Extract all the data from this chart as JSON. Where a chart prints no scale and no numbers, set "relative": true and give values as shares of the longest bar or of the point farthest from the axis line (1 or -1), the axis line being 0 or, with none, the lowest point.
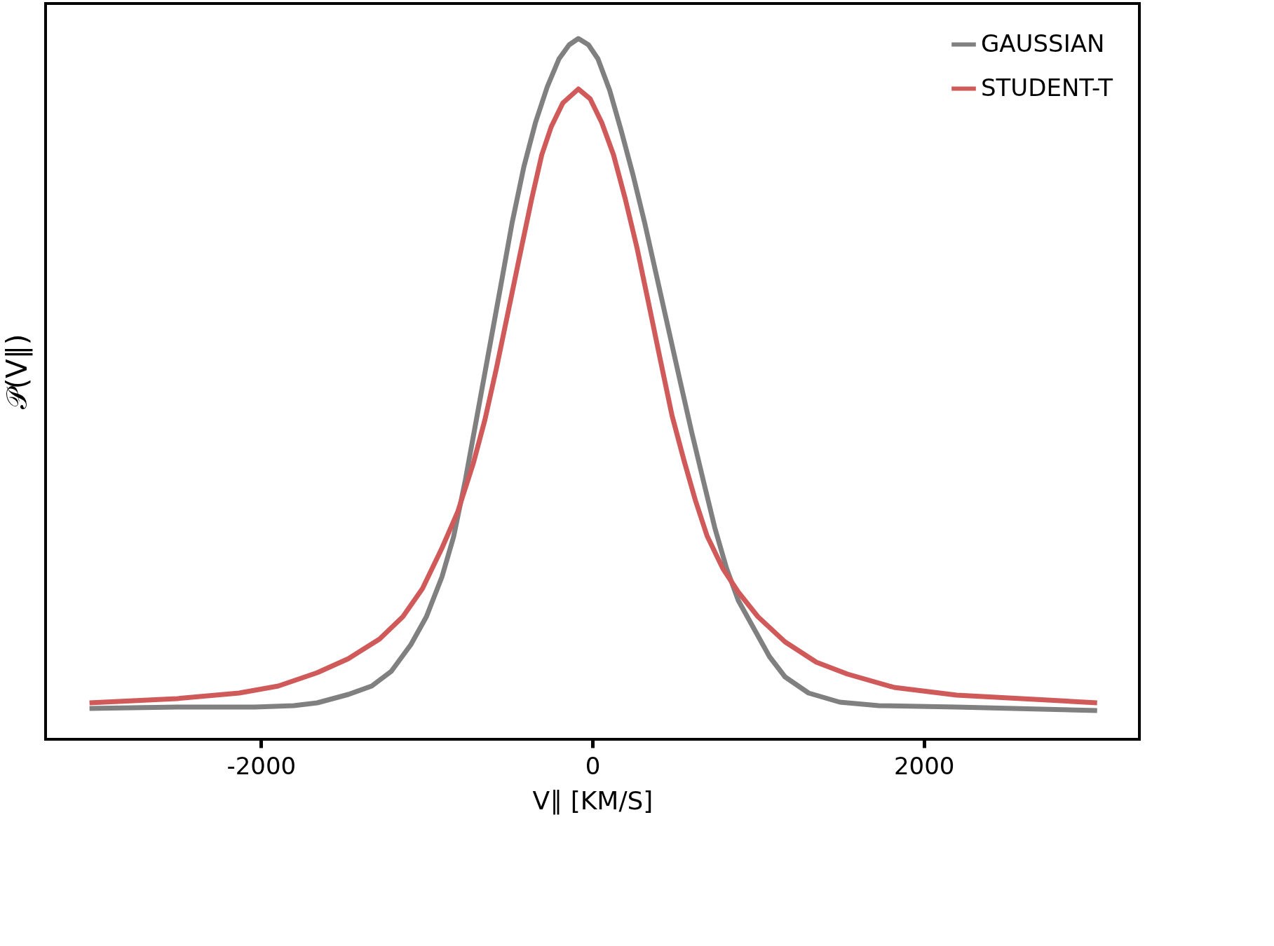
{
  "chart_data": {
    "type": "line",
    "relative": true,
    "xlabel": "V∥ [KM/S]",
    "ylabel": "𝒫(V∥)",
    "xlim": [
      -3300,
      3300
    ],
    "xticks": [
      -2000,
      0,
      2000
    ],
    "tick_labels": "x",
    "grid": false,
    "legend": "top right",
    "marker": "none",
    "line_style": "solid",
    "series": [
      {
        "name": "GAUSSIAN",
        "color": "#808080",
        "x": [
          -3035,
          -2508,
          -2038,
          -1802,
          -1661,
          -1473,
          -1332,
          -1214,
          -1096,
          -1002,
          -908,
          -838,
          -767,
          -696,
          -626,
          -555,
          -485,
          -414,
          -344,
          -273,
          -202,
          -141,
          -85,
          -24,
          33,
          104,
          174,
          245,
          315,
          386,
          456,
          527,
          598,
          668,
          739,
          809,
          880,
          974,
          1068,
          1162,
          1304,
          1492,
          1727,
          2198,
          3045
        ],
        "values": [
          0.044,
          0.046,
          0.046,
          0.048,
          0.052,
          0.064,
          0.076,
          0.097,
          0.135,
          0.175,
          0.232,
          0.289,
          0.37,
          0.462,
          0.553,
          0.645,
          0.737,
          0.817,
          0.88,
          0.931,
          0.971,
          0.991,
          1,
          0.991,
          0.971,
          0.926,
          0.868,
          0.805,
          0.737,
          0.662,
          0.588,
          0.513,
          0.439,
          0.37,
          0.301,
          0.244,
          0.198,
          0.158,
          0.118,
          0.089,
          0.066,
          0.053,
          0.048,
          0.046,
          0.041
        ]
      },
      {
        "name": "STUDENT-T",
        "color": "#d05a5a",
        "x": [
          -3035,
          -2508,
          -2132,
          -1896,
          -1661,
          -1473,
          -1285,
          -1144,
          -1026,
          -908,
          -814,
          -720,
          -649,
          -579,
          -508,
          -438,
          -367,
          -306,
          -249,
          -179,
          -85,
          -14,
          56,
          127,
          198,
          268,
          339,
          409,
          480,
          551,
          621,
          692,
          786,
          880,
          998,
          1162,
          1351,
          1539,
          1821,
          2198,
          2668,
          3045
        ],
        "values": [
          0.052,
          0.058,
          0.066,
          0.076,
          0.095,
          0.115,
          0.143,
          0.175,
          0.215,
          0.273,
          0.324,
          0.393,
          0.456,
          0.53,
          0.611,
          0.691,
          0.771,
          0.834,
          0.874,
          0.908,
          0.928,
          0.914,
          0.88,
          0.834,
          0.771,
          0.702,
          0.622,
          0.542,
          0.462,
          0.399,
          0.341,
          0.29,
          0.244,
          0.21,
          0.175,
          0.139,
          0.11,
          0.093,
          0.074,
          0.063,
          0.057,
          0.052
        ]
      }
    ]
  }
}
